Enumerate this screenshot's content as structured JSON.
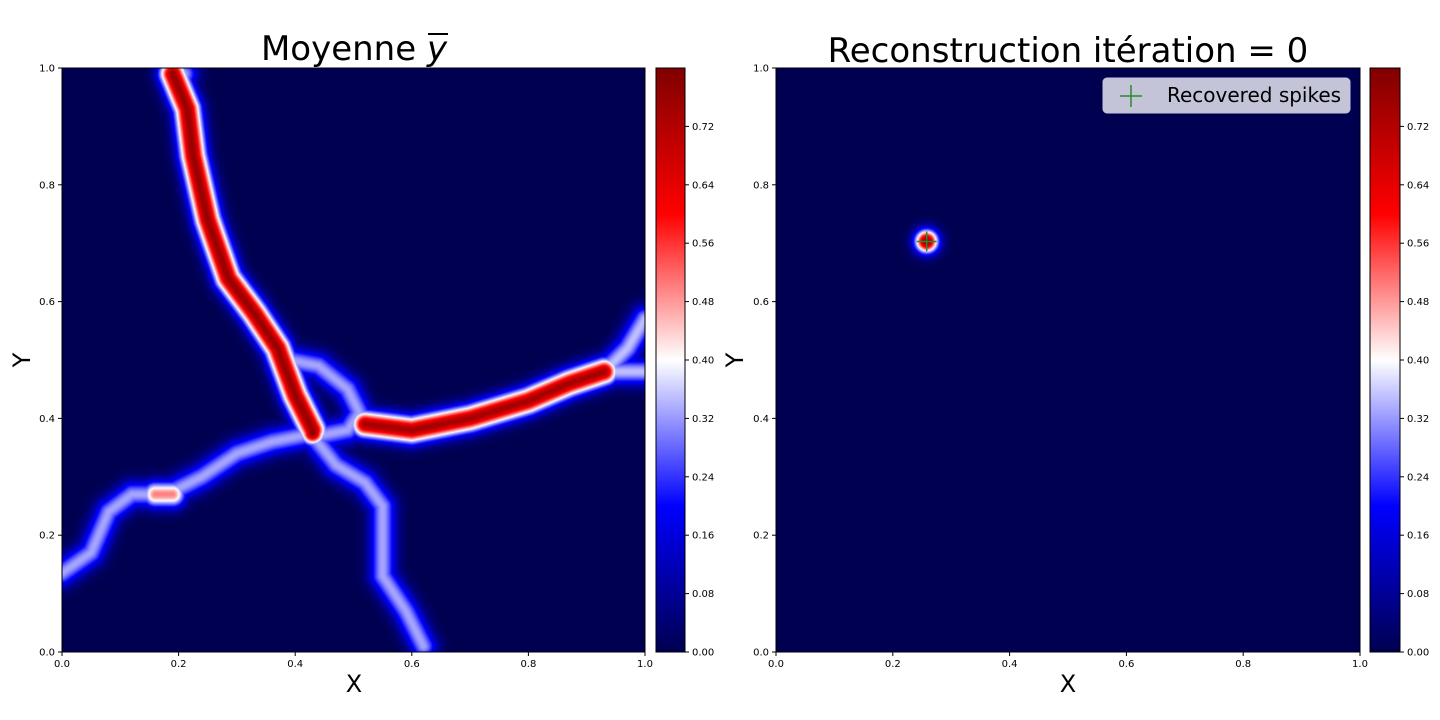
{
  "chart_data": [
    {
      "type": "heatmap",
      "title": "Moyenne ",
      "title_symbol": "y",
      "xlabel": "X",
      "ylabel": "Y",
      "xlim": [
        0,
        1
      ],
      "ylim": [
        0,
        1
      ],
      "x_ticks": [
        "0.0",
        "0.2",
        "0.4",
        "0.6",
        "0.8",
        "1.0"
      ],
      "y_ticks": [
        "0.0",
        "0.2",
        "0.4",
        "0.6",
        "0.8",
        "1.0"
      ],
      "colormap": "seismic",
      "colorbar": {
        "range": [
          0,
          0.8
        ],
        "ticks": [
          "0.00",
          "0.08",
          "0.16",
          "0.24",
          "0.32",
          "0.40",
          "0.48",
          "0.56",
          "0.64",
          "0.72"
        ]
      },
      "background_value": 0.0,
      "curves": [
        {
          "points": [
            [
              0.19,
              0.99
            ],
            [
              0.215,
              0.93
            ],
            [
              0.225,
              0.85
            ],
            [
              0.25,
              0.74
            ],
            [
              0.285,
              0.64
            ],
            [
              0.33,
              0.58
            ],
            [
              0.37,
              0.52
            ],
            [
              0.4,
              0.44
            ],
            [
              0.43,
              0.38
            ]
          ],
          "peak": 0.76
        },
        {
          "points": [
            [
              0.21,
              0.99
            ],
            [
              0.2,
              0.96
            ]
          ],
          "peak": 0.33
        },
        {
          "points": [
            [
              0.52,
              0.39
            ],
            [
              0.6,
              0.38
            ],
            [
              0.7,
              0.4
            ],
            [
              0.8,
              0.43
            ],
            [
              0.87,
              0.46
            ],
            [
              0.93,
              0.48
            ]
          ],
          "peak": 0.74
        },
        {
          "points": [
            [
              0.93,
              0.48
            ],
            [
              0.97,
              0.52
            ],
            [
              1.0,
              0.57
            ]
          ],
          "peak": 0.35
        },
        {
          "points": [
            [
              0.93,
              0.48
            ],
            [
              1.0,
              0.48
            ]
          ],
          "peak": 0.35
        },
        {
          "points": [
            [
              0.0,
              0.135
            ],
            [
              0.05,
              0.17
            ],
            [
              0.08,
              0.24
            ],
            [
              0.12,
              0.27
            ],
            [
              0.18,
              0.27
            ],
            [
              0.24,
              0.3
            ],
            [
              0.3,
              0.34
            ],
            [
              0.36,
              0.36
            ],
            [
              0.41,
              0.37
            ]
          ],
          "peak": 0.33
        },
        {
          "points": [
            [
              0.43,
              0.37
            ],
            [
              0.47,
              0.32
            ],
            [
              0.52,
              0.29
            ],
            [
              0.55,
              0.25
            ],
            [
              0.55,
              0.18
            ],
            [
              0.55,
              0.13
            ],
            [
              0.59,
              0.07
            ],
            [
              0.62,
              0.01
            ]
          ],
          "peak": 0.33
        },
        {
          "points": [
            [
              0.39,
              0.5
            ],
            [
              0.44,
              0.49
            ],
            [
              0.49,
              0.45
            ],
            [
              0.51,
              0.41
            ],
            [
              0.49,
              0.38
            ],
            [
              0.44,
              0.37
            ]
          ],
          "peak": 0.33
        },
        {
          "points": [
            [
              0.16,
              0.27
            ],
            [
              0.19,
              0.27
            ]
          ],
          "peak": 0.5
        }
      ],
      "blobs": [
        {
          "x": 0.43,
          "y": 0.375,
          "peak": 0.78
        }
      ]
    },
    {
      "type": "heatmap",
      "title": "Reconstruction itération = 0",
      "xlabel": "X",
      "ylabel": "Y",
      "xlim": [
        0,
        1
      ],
      "ylim": [
        0,
        1
      ],
      "x_ticks": [
        "0.0",
        "0.2",
        "0.4",
        "0.6",
        "0.8",
        "1.0"
      ],
      "y_ticks": [
        "0.0",
        "0.2",
        "0.4",
        "0.6",
        "0.8",
        "1.0"
      ],
      "colormap": "seismic",
      "colorbar": {
        "range": [
          0,
          0.8
        ],
        "ticks": [
          "0.00",
          "0.08",
          "0.16",
          "0.24",
          "0.32",
          "0.40",
          "0.48",
          "0.56",
          "0.64",
          "0.72"
        ]
      },
      "background_value": 0.0,
      "curves": [],
      "blobs": [
        {
          "x": 0.258,
          "y": 0.703,
          "peak": 0.78
        }
      ],
      "legend": {
        "label": "Recovered spikes",
        "marker": "+",
        "color": "#2a8a2a",
        "position": "upper right"
      },
      "spikes": [
        {
          "x": 0.258,
          "y": 0.703
        }
      ]
    }
  ]
}
